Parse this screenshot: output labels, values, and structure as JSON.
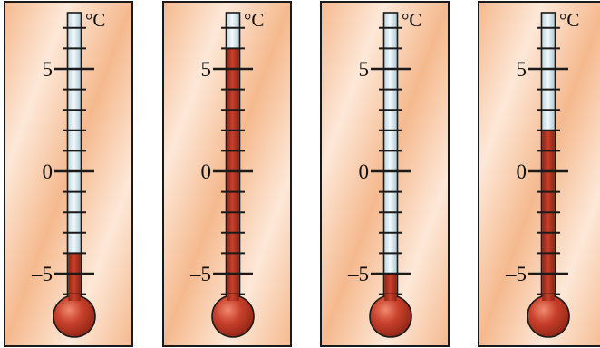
{
  "unit": "°C",
  "tick_labels": {
    "high": "5",
    "zero": "0",
    "low": "–5"
  },
  "scale": {
    "min": -6,
    "max": 7,
    "major_step": 5,
    "minor_step": 1
  },
  "colors": {
    "panel_light": "#fde8d8",
    "panel_warm": "#f5b98e",
    "mercury": "#c9412c",
    "mercury_dark": "#8e2414",
    "tube_glass": "#e2f0f6",
    "outline": "#1a1a1a"
  },
  "thermometers": [
    {
      "label": "thermometer-1",
      "reading_celsius": -4
    },
    {
      "label": "thermometer-2",
      "reading_celsius": 6
    },
    {
      "label": "thermometer-3",
      "reading_celsius": -5
    },
    {
      "label": "thermometer-4",
      "reading_celsius": 2
    }
  ]
}
